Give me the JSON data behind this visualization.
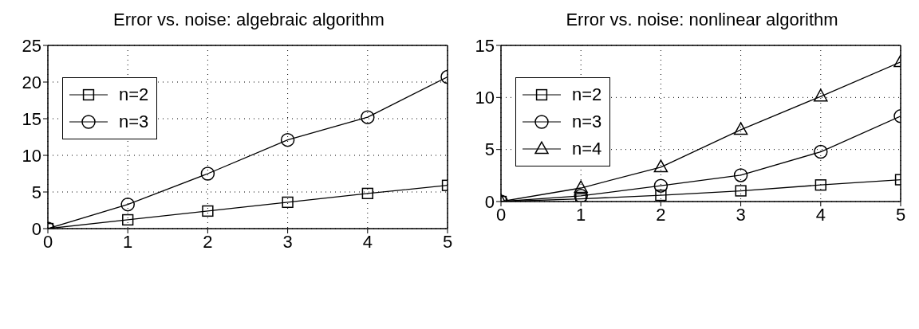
{
  "chart_data": [
    {
      "type": "line",
      "title": "Error vs. noise: algebraic algorithm",
      "x": [
        0,
        1,
        2,
        3,
        4,
        5
      ],
      "xlim": [
        0,
        5
      ],
      "xticks": [
        0,
        1,
        2,
        3,
        4,
        5
      ],
      "ylim": [
        0,
        25
      ],
      "yticks": [
        0,
        5,
        10,
        15,
        20,
        25
      ],
      "grid": true,
      "legend": "top left",
      "line_style": "solid",
      "series": [
        {
          "name": "n=2",
          "color": "#000000",
          "marker": "square",
          "values": [
            0,
            1.2,
            2.4,
            3.6,
            4.8,
            5.9
          ]
        },
        {
          "name": "n=3",
          "color": "#000000",
          "marker": "circle",
          "values": [
            0,
            3.3,
            7.5,
            12.1,
            15.2,
            20.7
          ]
        }
      ]
    },
    {
      "type": "line",
      "title": "Error vs. noise: nonlinear algorithm",
      "x": [
        0,
        1,
        2,
        3,
        4,
        5
      ],
      "xlim": [
        0,
        5
      ],
      "xticks": [
        0,
        1,
        2,
        3,
        4,
        5
      ],
      "ylim": [
        0,
        15
      ],
      "yticks": [
        0,
        5,
        10,
        15
      ],
      "grid": true,
      "legend": "top left",
      "line_style": "solid",
      "series": [
        {
          "name": "n=2",
          "color": "#000000",
          "marker": "square",
          "values": [
            0,
            0.26,
            0.6,
            1.03,
            1.59,
            2.1
          ]
        },
        {
          "name": "n=3",
          "color": "#000000",
          "marker": "circle",
          "values": [
            0,
            0.55,
            1.52,
            2.53,
            4.78,
            8.2
          ]
        },
        {
          "name": "n=4",
          "color": "#000000",
          "marker": "triangle",
          "values": [
            0,
            1.3,
            3.3,
            6.9,
            10.1,
            13.4
          ]
        }
      ]
    }
  ]
}
